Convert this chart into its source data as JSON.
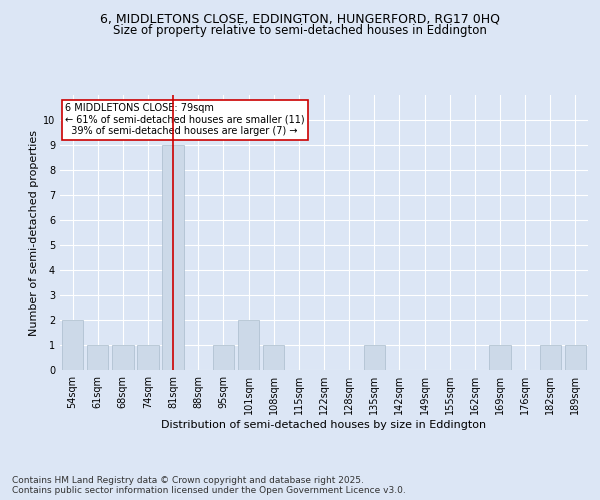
{
  "title1": "6, MIDDLETONS CLOSE, EDDINGTON, HUNGERFORD, RG17 0HQ",
  "title2": "Size of property relative to semi-detached houses in Eddington",
  "xlabel": "Distribution of semi-detached houses by size in Eddington",
  "ylabel": "Number of semi-detached properties",
  "categories": [
    "54sqm",
    "61sqm",
    "68sqm",
    "74sqm",
    "81sqm",
    "88sqm",
    "95sqm",
    "101sqm",
    "108sqm",
    "115sqm",
    "122sqm",
    "128sqm",
    "135sqm",
    "142sqm",
    "149sqm",
    "155sqm",
    "162sqm",
    "169sqm",
    "176sqm",
    "182sqm",
    "189sqm"
  ],
  "values": [
    2,
    1,
    1,
    1,
    9,
    0,
    1,
    2,
    1,
    0,
    0,
    0,
    1,
    0,
    0,
    0,
    0,
    1,
    0,
    1,
    1
  ],
  "bar_color": "#ccd9e8",
  "bar_edge_color": "#aabccc",
  "highlight_index": 4,
  "highlight_line_color": "#cc0000",
  "annotation_text": "6 MIDDLETONS CLOSE: 79sqm\n← 61% of semi-detached houses are smaller (11)\n  39% of semi-detached houses are larger (7) →",
  "annotation_box_color": "#ffffff",
  "annotation_box_edge_color": "#cc0000",
  "ylim": [
    0,
    11
  ],
  "yticks": [
    0,
    1,
    2,
    3,
    4,
    5,
    6,
    7,
    8,
    9,
    10,
    11
  ],
  "footer": "Contains HM Land Registry data © Crown copyright and database right 2025.\nContains public sector information licensed under the Open Government Licence v3.0.",
  "bg_color": "#dce6f5",
  "plot_bg_color": "#dce6f5",
  "title_fontsize": 9,
  "subtitle_fontsize": 8.5,
  "axis_fontsize": 8,
  "tick_fontsize": 7,
  "footer_fontsize": 6.5
}
